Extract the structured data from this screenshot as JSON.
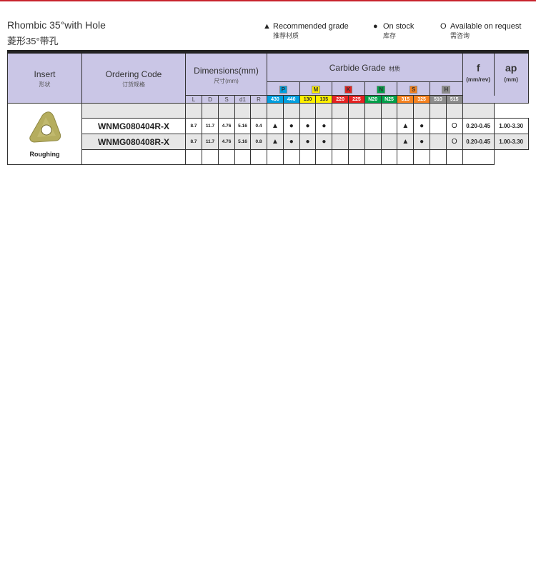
{
  "title": "Rhombic 35°with Hole",
  "subtitle": "菱形35°带孔",
  "legend": [
    {
      "icon": "triangle-icon",
      "symbol": "▲",
      "en": "Recommended grade",
      "cn": "推荐材质"
    },
    {
      "icon": "dot-icon",
      "symbol": "●",
      "en": "On stock",
      "cn": "库存"
    },
    {
      "icon": "circle-icon",
      "symbol": "O",
      "en": "Available on request",
      "cn": "需咨询"
    }
  ],
  "header": {
    "insert": "Insert",
    "insert_cn": "形状",
    "code": "Ordering Code",
    "code_cn": "订货规格",
    "dims": "Dimensions(mm)",
    "dims_cn": "尺寸(mm)",
    "dim_cols": [
      "L",
      "D",
      "S",
      "d1",
      "R"
    ],
    "grade": "Carbide Grade",
    "grade_cn": "材质",
    "groups": [
      {
        "label": "P",
        "color": "#00a0e0",
        "grades": [
          "430",
          "440"
        ]
      },
      {
        "label": "M",
        "color": "#fff000",
        "grades": [
          "130",
          "135"
        ]
      },
      {
        "label": "K",
        "color": "#e52222",
        "grades": [
          "220",
          "225"
        ]
      },
      {
        "label": "N",
        "color": "#00a04a",
        "grades": [
          "N20",
          "N25"
        ]
      },
      {
        "label": "S",
        "color": "#f58220",
        "grades": [
          "315",
          "325"
        ]
      },
      {
        "label": "H",
        "color": "#8c8c8c",
        "grades": [
          "510",
          "515"
        ]
      }
    ],
    "f": "f",
    "f_unit": "(mm/rev)",
    "ap": "ap",
    "ap_unit": "(mm)"
  },
  "insert_label": "Roughing",
  "insert_color": "#b5ad5e",
  "rows": [
    {
      "code": "WNMG080404R-X",
      "dims": [
        "8.7",
        "11.7",
        "4.76",
        "5.16",
        "0.4"
      ],
      "grades": [
        "▲",
        "●",
        "●",
        "●",
        "",
        "",
        "",
        "",
        "▲",
        "●",
        "",
        "O"
      ],
      "f": "0.20-0.45",
      "ap": "1.00-3.30"
    },
    {
      "code": "WNMG080408R-X",
      "dims": [
        "8.7",
        "11.7",
        "4.76",
        "5.16",
        "0.8"
      ],
      "grades": [
        "▲",
        "●",
        "●",
        "●",
        "",
        "",
        "",
        "",
        "▲",
        "●",
        "",
        "O"
      ],
      "f": "0.20-0.45",
      "ap": "1.00-3.30"
    }
  ]
}
